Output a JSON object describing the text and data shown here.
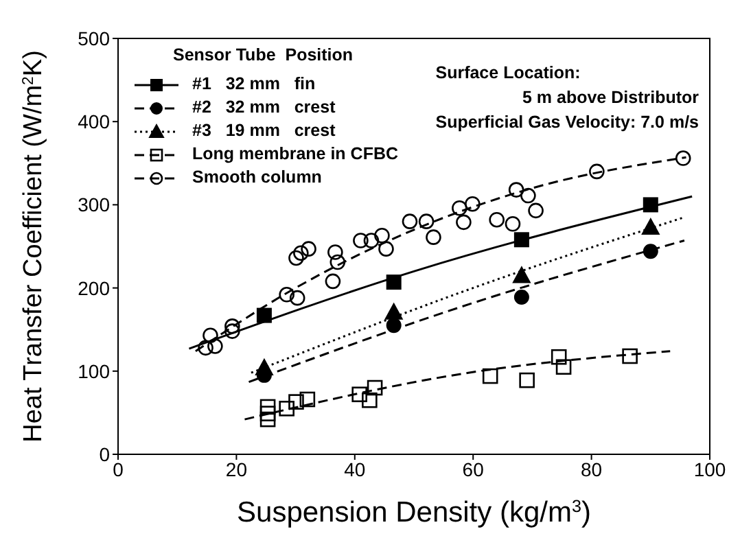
{
  "chart_data": {
    "type": "scatter",
    "xlabel": "Suspension Density (kg/m$^{3}$)",
    "ylabel": "Heat Transfer Coefficient (W/m$^{2}$K)",
    "xlim": [
      0,
      100
    ],
    "ylim": [
      0,
      500
    ],
    "xticks": [
      0,
      20,
      40,
      60,
      80,
      100
    ],
    "yticks": [
      0,
      100,
      200,
      300,
      400,
      500
    ],
    "grid": false,
    "legend": "top left",
    "legend_title": "Sensor Tube  Position",
    "annotations": [
      "Surface Location:",
      "5 m above Distributor",
      "Superficial Gas Velocity: 7.0 m/s"
    ],
    "series": [
      {
        "name": "#1   32 mm   fin",
        "color": "#000000",
        "marker": "square",
        "line_style": "solid",
        "x": [
          24.7,
          46.6,
          68.2,
          90.0
        ],
        "values": [
          167,
          207,
          258,
          300
        ]
      },
      {
        "name": "#2   32 mm   crest",
        "color": "#000000",
        "marker": "circle",
        "line_style": "dashed",
        "x": [
          24.7,
          46.6,
          68.2,
          90.0
        ],
        "values": [
          95,
          155,
          189,
          244
        ]
      },
      {
        "name": "#3   19 mm   crest",
        "color": "#000000",
        "marker": "triangle",
        "line_style": "dotted",
        "x": [
          24.7,
          46.6,
          68.2,
          90.0
        ],
        "values": [
          104,
          171,
          215,
          273
        ]
      },
      {
        "name": "Long membrane in CFBC",
        "color": "#000000",
        "marker": "square-open",
        "line_style": "dashed",
        "x": [
          25.3,
          25.3,
          25.3,
          28.5,
          30.1,
          32.0,
          40.8,
          42.5,
          43.4,
          62.9,
          69.1,
          74.5,
          75.3,
          86.5
        ],
        "values": [
          49,
          57,
          42,
          55,
          63,
          66,
          72,
          65,
          80,
          94,
          89,
          117,
          105,
          118
        ]
      },
      {
        "name": "Smooth column",
        "color": "#000000",
        "marker": "circle-open",
        "line_style": "dashed",
        "x": [
          14.8,
          15.6,
          16.4,
          19.3,
          19.3,
          28.5,
          30.3,
          30.1,
          30.9,
          32.2,
          36.7,
          37.1,
          36.3,
          41.0,
          42.8,
          44.6,
          45.3,
          49.3,
          52.1,
          53.3,
          57.7,
          58.4,
          59.9,
          64.0,
          66.7,
          67.3,
          69.3,
          70.6,
          80.9,
          95.5
        ],
        "values": [
          128,
          143,
          130,
          154,
          148,
          192,
          188,
          236,
          242,
          247,
          243,
          231,
          208,
          257,
          257,
          263,
          247,
          280,
          280,
          261,
          296,
          279,
          301,
          282,
          277,
          318,
          311,
          293,
          340,
          356
        ]
      },
      {
        "type": "line",
        "color": "#000000",
        "line_style": "solid",
        "x": [
          12,
          50,
          97
        ],
        "values": [
          127,
          220,
          310
        ]
      },
      {
        "type": "line",
        "color": "#000000",
        "line_style": "dashed",
        "x": [
          22.1,
          60,
          95.7
        ],
        "values": [
          87,
          182,
          257
        ]
      },
      {
        "type": "line",
        "color": "#000000",
        "line_style": "dotted",
        "x": [
          22.5,
          60,
          95.7
        ],
        "values": [
          98,
          200,
          285
        ]
      },
      {
        "type": "line",
        "color": "#000000",
        "line_style": "dashed",
        "x": [
          21.4,
          59.2,
          93.3
        ],
        "values": [
          42,
          98,
          124
        ]
      },
      {
        "type": "line",
        "color": "#000000",
        "line_style": "dashed",
        "x": [
          13.1,
          30,
          50,
          70,
          96
        ],
        "values": [
          124,
          200,
          270,
          320,
          357
        ]
      }
    ]
  }
}
